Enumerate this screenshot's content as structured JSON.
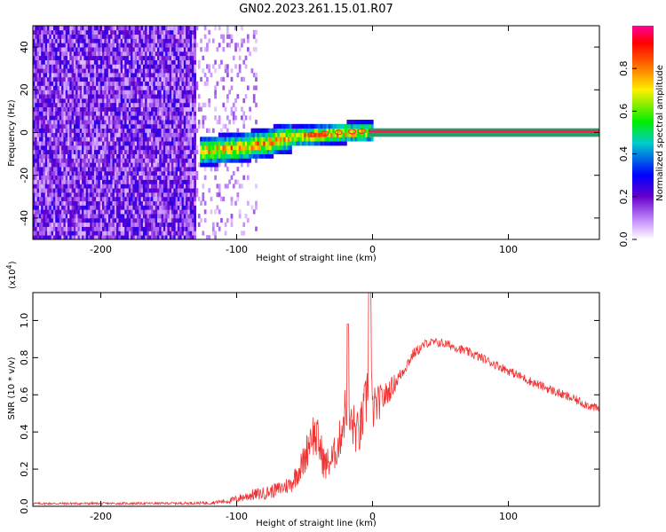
{
  "title": "GN02.2023.261.15.01.R07",
  "chart_data": [
    {
      "type": "heatmap",
      "xlabel": "Height of straight line (km)",
      "ylabel": "Frequency (Hz)",
      "xlim": [
        -250,
        167
      ],
      "ylim": [
        -50,
        50
      ],
      "xticks": [
        "-200",
        "-100",
        "0",
        "100"
      ],
      "xtick_values": [
        -200,
        -100,
        0,
        100
      ],
      "yticks": [
        "-40",
        "-20",
        "0",
        "20",
        "40"
      ],
      "ytick_values": [
        -40,
        -20,
        0,
        20,
        40
      ],
      "colorbar": {
        "label": "Normalized spectral amplitude",
        "range": [
          0,
          1
        ],
        "ticks": [
          "0.0",
          "0.2",
          "0.4",
          "0.6",
          "0.8"
        ],
        "tick_values": [
          0.0,
          0.2,
          0.4,
          0.6,
          0.8
        ]
      },
      "features": {
        "noise_region_x": [
          -250,
          -130
        ],
        "scattered_x": [
          -130,
          -85
        ],
        "signal_track": {
          "x": [
            -128,
            -100,
            -80,
            -60,
            -40,
            -20,
            -5,
            167
          ],
          "freq": [
            -9,
            -7,
            -5,
            -2,
            -1,
            0,
            0.5,
            0.5
          ]
        },
        "horizontal_band_freq": [
          -2,
          2
        ]
      }
    },
    {
      "type": "line",
      "xlabel": "Height of straight line (km)",
      "ylabel": "SNR (10 * v/v)",
      "y_multiplier": "(x10",
      "y_multiplier_exp": "4",
      "y_multiplier_close": ")",
      "xlim": [
        -250,
        167
      ],
      "ylim": [
        0,
        11500
      ],
      "xticks": [
        "-200",
        "-100",
        "0",
        "100"
      ],
      "xtick_values": [
        -200,
        -100,
        0,
        100
      ],
      "yticks": [
        "0.0",
        "0.2",
        "0.4",
        "0.6",
        "0.8",
        "1.0"
      ],
      "ytick_values": [
        0,
        2000,
        4000,
        6000,
        8000,
        10000
      ],
      "color": "#ee3333",
      "series": [
        {
          "x": [
            -250,
            -200,
            -150,
            -120,
            -105,
            -100,
            -90,
            -80,
            -70,
            -60,
            -50,
            -45,
            -40,
            -35,
            -30,
            -25,
            -20,
            -18,
            -15,
            -10,
            -5,
            -2,
            0,
            10,
            20,
            30,
            40,
            50,
            60,
            80,
            100,
            120,
            140,
            167
          ],
          "y": [
            150,
            150,
            160,
            180,
            300,
            400,
            600,
            700,
            900,
            1200,
            2500,
            4000,
            3500,
            2200,
            2500,
            3300,
            5200,
            4500,
            4400,
            3800,
            5500,
            7500,
            5200,
            6000,
            7000,
            8200,
            8800,
            8800,
            8600,
            8000,
            7300,
            6600,
            6000,
            5200
          ],
          "noise_amplitude": [
            60,
            60,
            60,
            80,
            150,
            200,
            300,
            350,
            400,
            500,
            900,
            1200,
            1200,
            900,
            900,
            1000,
            1500,
            1400,
            1400,
            1200,
            1500,
            1800,
            1200,
            700,
            400,
            300,
            250,
            250,
            250,
            250,
            250,
            250,
            250,
            250
          ]
        }
      ]
    }
  ]
}
